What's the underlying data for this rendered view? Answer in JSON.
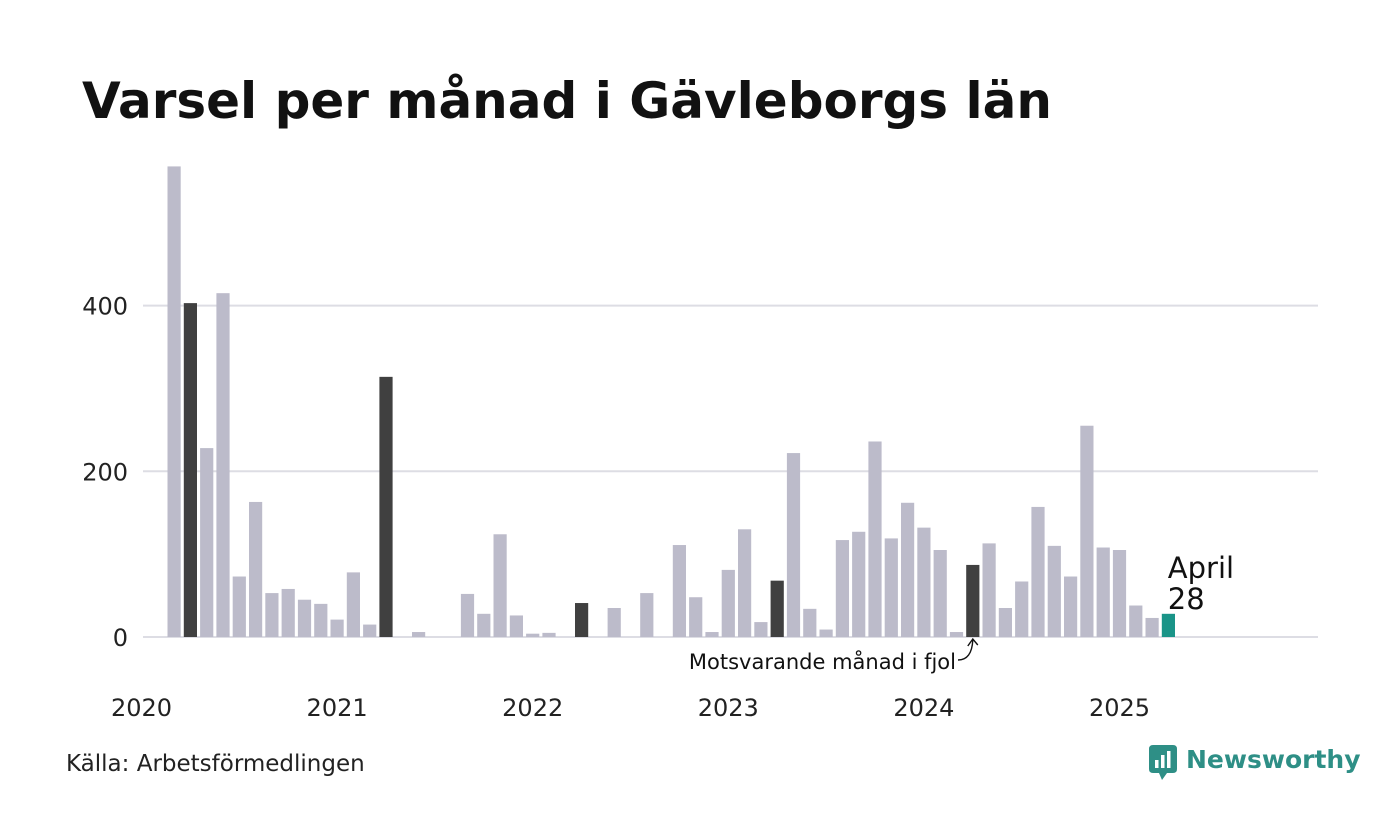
{
  "chart_data": {
    "type": "bar",
    "title": "Varsel per månad i Gävleborgs län",
    "xlabel": "",
    "ylabel": "",
    "ylim": [
      0,
      580
    ],
    "yticks": [
      0,
      200,
      400
    ],
    "grid": true,
    "start": {
      "year": 2020,
      "month": 3
    },
    "xtick_labels": [
      "2020",
      "2021",
      "2022",
      "2023",
      "2024",
      "2025"
    ],
    "values": [
      568,
      403,
      228,
      415,
      73,
      163,
      53,
      58,
      45,
      40,
      21,
      78,
      15,
      314,
      0,
      6,
      0,
      0,
      52,
      28,
      124,
      26,
      4,
      5,
      0,
      41,
      0,
      35,
      0,
      53,
      0,
      111,
      48,
      6,
      81,
      130,
      18,
      68,
      222,
      34,
      9,
      117,
      127,
      236,
      119,
      162,
      132,
      105,
      6,
      87,
      113,
      35,
      67,
      157,
      110,
      73,
      255,
      108,
      105,
      38,
      23,
      28
    ],
    "comparison_indices": [
      1,
      13,
      25,
      37,
      49
    ],
    "highlight_index": 61,
    "highlight_label": "April",
    "highlight_value_label": "28",
    "annotation": "Motsvarande månad i fjol",
    "colors": {
      "bar": "#bcbbca",
      "comparison": "#404040",
      "highlight": "#1a9488",
      "grid": "#dddde4"
    },
    "source": "Källa: Arbetsförmedlingen",
    "brand": "Newsworthy",
    "brand_color": "#2e8f86"
  }
}
